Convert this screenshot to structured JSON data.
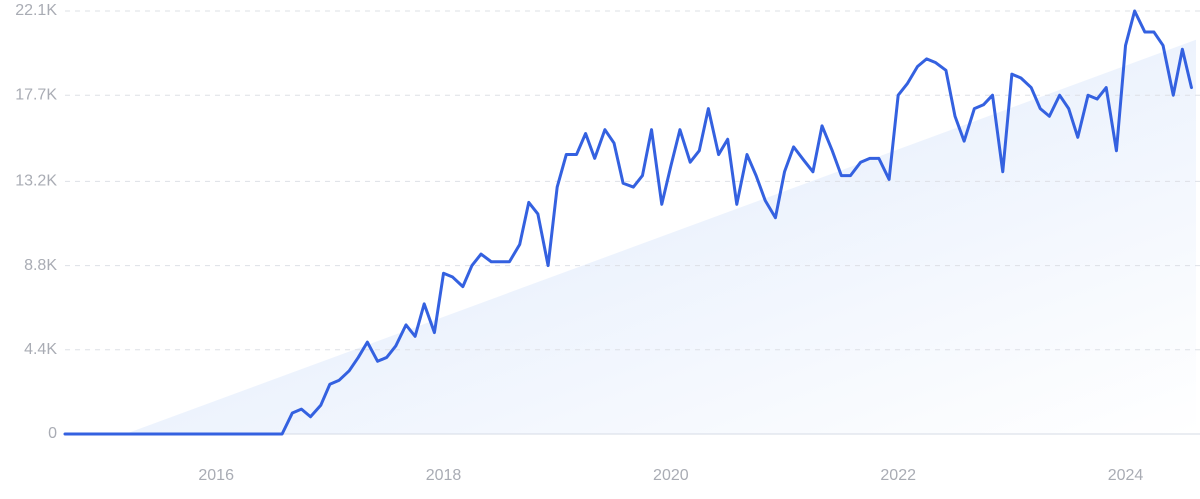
{
  "chart_data": {
    "type": "line",
    "x": [
      2014.67,
      2014.75,
      2014.83,
      2014.92,
      2015.0,
      2015.08,
      2015.17,
      2015.25,
      2015.33,
      2015.42,
      2015.5,
      2015.58,
      2015.67,
      2015.75,
      2015.83,
      2015.92,
      2016.0,
      2016.08,
      2016.17,
      2016.25,
      2016.33,
      2016.42,
      2016.5,
      2016.58,
      2016.67,
      2016.75,
      2016.83,
      2016.92,
      2017.0,
      2017.08,
      2017.17,
      2017.25,
      2017.33,
      2017.42,
      2017.5,
      2017.58,
      2017.67,
      2017.75,
      2017.83,
      2017.92,
      2018.0,
      2018.08,
      2018.17,
      2018.25,
      2018.33,
      2018.42,
      2018.5,
      2018.58,
      2018.67,
      2018.75,
      2018.83,
      2018.92,
      2019.0,
      2019.08,
      2019.17,
      2019.25,
      2019.33,
      2019.42,
      2019.5,
      2019.58,
      2019.67,
      2019.75,
      2019.83,
      2019.92,
      2020.0,
      2020.08,
      2020.17,
      2020.25,
      2020.33,
      2020.42,
      2020.5,
      2020.58,
      2020.67,
      2020.75,
      2020.83,
      2020.92,
      2021.0,
      2021.08,
      2021.17,
      2021.25,
      2021.33,
      2021.42,
      2021.5,
      2021.58,
      2021.67,
      2021.75,
      2021.83,
      2021.92,
      2022.0,
      2022.08,
      2022.17,
      2022.25,
      2022.33,
      2022.42,
      2022.5,
      2022.58,
      2022.67,
      2022.75,
      2022.83,
      2022.92,
      2023.0,
      2023.08,
      2023.17,
      2023.25,
      2023.33,
      2023.42,
      2023.5,
      2023.58,
      2023.67,
      2023.75,
      2023.83,
      2023.92,
      2024.0,
      2024.08,
      2024.17,
      2024.25,
      2024.33,
      2024.42,
      2024.5,
      2024.58
    ],
    "series": [
      {
        "color": "#3461e0",
        "values": [
          0,
          0,
          0,
          0,
          0,
          0,
          0,
          0,
          0,
          0,
          0,
          0,
          0,
          0,
          0,
          0,
          0,
          0,
          0,
          0,
          0,
          0,
          0,
          0,
          1100,
          1300,
          900,
          1500,
          2600,
          2800,
          3300,
          4000,
          4800,
          3800,
          4000,
          4600,
          5700,
          5100,
          6800,
          5300,
          8400,
          8200,
          7700,
          8800,
          9400,
          9000,
          9000,
          9000,
          9900,
          12100,
          11500,
          8800,
          12900,
          14600,
          14600,
          15700,
          14400,
          15900,
          15200,
          13100,
          12900,
          13500,
          15900,
          12000,
          14000,
          15900,
          14200,
          14800,
          17000,
          14600,
          15400,
          12000,
          14600,
          13500,
          12200,
          11300,
          13700,
          15000,
          14300,
          13700,
          16100,
          14800,
          13500,
          13500,
          14200,
          14400,
          14400,
          13300,
          17700,
          18300,
          19200,
          19600,
          19400,
          19000,
          16600,
          15300,
          17000,
          17200,
          17700,
          13700,
          18800,
          18600,
          18100,
          17000,
          16600,
          17700,
          17000,
          15500,
          17700,
          17500,
          18100,
          14800,
          20300,
          22100,
          21000,
          21000,
          20300,
          17700,
          20100,
          18100
        ]
      }
    ],
    "trend": {
      "x": [
        2015.2,
        2024.62
      ],
      "values": [
        0,
        20600
      ],
      "color": "#dbe7fb"
    },
    "xlim": [
      2014.67,
      2024.62
    ],
    "ylim": [
      0,
      22100
    ],
    "xticks": [
      2016,
      2018,
      2020,
      2022,
      2024
    ],
    "yticks": [
      0,
      {
        "value": 4400,
        "label": "4.4K"
      },
      {
        "value": 8800,
        "label": "8.8K"
      },
      {
        "value": 13200,
        "label": "13.2K"
      },
      {
        "value": 17700,
        "label": "17.7K"
      },
      {
        "value": 22100,
        "label": "22.1K"
      }
    ],
    "grid": true
  }
}
